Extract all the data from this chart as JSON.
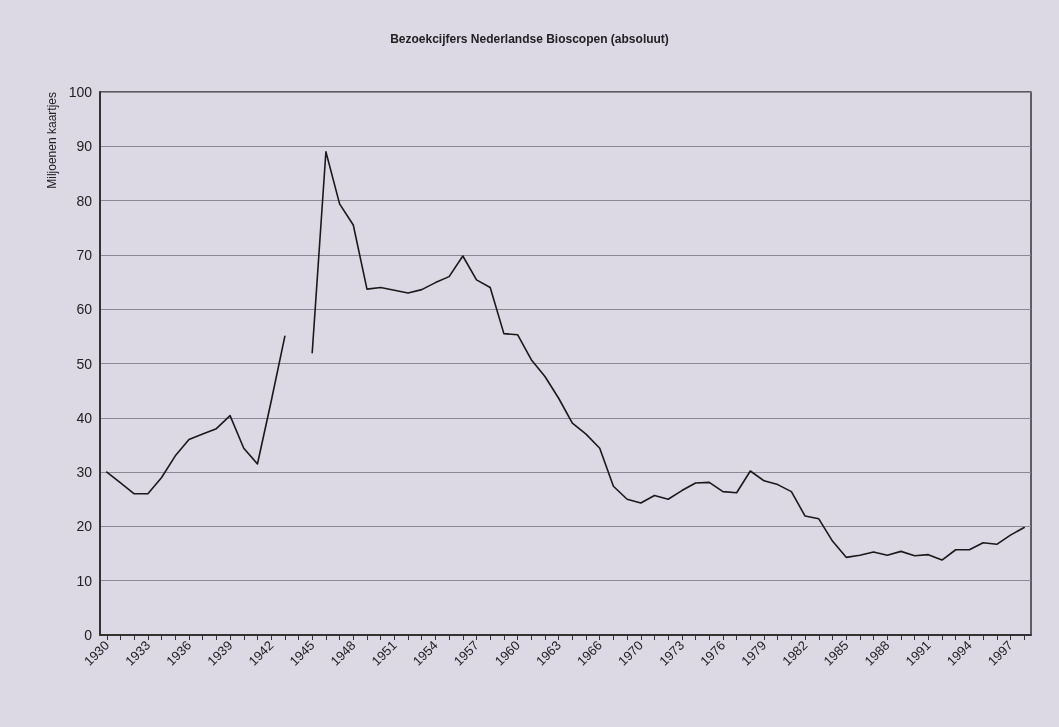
{
  "chart_data": {
    "type": "line",
    "title": "Bezoekcijfers Nederlandse Bioscopen (absoluut)",
    "ylabel": "Miljoenen kaartjes",
    "categories": [
      "1930",
      null,
      null,
      "1933",
      null,
      null,
      "1936",
      null,
      null,
      "1939",
      null,
      null,
      "1942",
      null,
      null,
      "1945",
      null,
      null,
      "1948",
      null,
      null,
      "1951",
      null,
      null,
      "1954",
      null,
      null,
      "1957",
      null,
      null,
      "1960",
      null,
      null,
      "1963",
      null,
      null,
      "1966",
      null,
      null,
      "1970",
      null,
      null,
      "1973",
      null,
      null,
      "1976",
      null,
      null,
      "1979",
      null,
      null,
      "1982",
      null,
      null,
      "1985",
      null,
      null,
      "1988",
      null,
      null,
      "1991",
      null,
      null,
      "1994",
      null,
      null,
      "1997",
      null
    ],
    "series": [
      {
        "color": "#1a1a1a",
        "values": [
          30,
          28,
          26,
          26,
          29,
          33,
          36,
          37,
          38,
          40.4,
          34.4,
          31.5,
          43,
          55,
          null,
          52,
          89,
          79.4,
          75.5,
          63.7,
          64,
          63.5,
          63,
          63.6,
          64.9,
          66,
          69.8,
          65.4,
          64,
          55.5,
          55.3,
          50.7,
          47.6,
          43.6,
          39,
          37,
          34.4,
          27.4,
          25,
          24.3,
          25.7,
          25,
          26.6,
          28,
          28.1,
          26.4,
          26.2,
          30.2,
          28.4,
          27.7,
          26.4,
          21.9,
          21.4,
          17.3,
          14.3,
          14.7,
          15.3,
          14.7,
          15.4,
          14.6,
          14.8,
          13.8,
          15.7,
          15.7,
          17,
          16.7,
          18.4,
          19.8
        ]
      }
    ],
    "ylim": [
      0,
      100
    ],
    "yticks": [
      0,
      10,
      20,
      30,
      40,
      50,
      60,
      70,
      80,
      90,
      100
    ],
    "grid": "y",
    "marker": "none",
    "line_style": "solid"
  }
}
